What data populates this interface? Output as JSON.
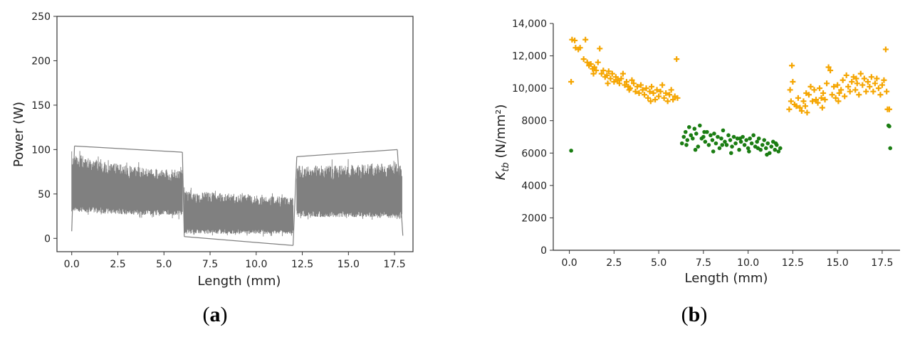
{
  "colors": {
    "power_signal": "#808080",
    "ktb_orange": "#f5a500",
    "ktb_green": "#1a7d12",
    "axis": "#333333"
  },
  "panels": {
    "a": {
      "open": "(",
      "letter": "a",
      "close": ")"
    },
    "b": {
      "open": "(",
      "letter": "b",
      "close": ")"
    }
  },
  "chart_data": [
    {
      "id": "a",
      "type": "line",
      "title": "",
      "xlabel": "Length (mm)",
      "ylabel": "Power (W)",
      "xlim": [
        -0.8,
        18.5
      ],
      "ylim": [
        -15,
        250
      ],
      "xticks": [
        0.0,
        2.5,
        5.0,
        7.5,
        10.0,
        12.5,
        15.0,
        17.5
      ],
      "xtick_labels": [
        "0.0",
        "2.5",
        "5.0",
        "7.5",
        "10.0",
        "12.5",
        "15.0",
        "17.5"
      ],
      "yticks": [
        0,
        50,
        100,
        150,
        200,
        250
      ],
      "ytick_labels": [
        "0",
        "50",
        "100",
        "150",
        "200",
        "250"
      ],
      "grid": false,
      "series": [
        {
          "style": "band",
          "segments": [
            {
              "x": [
                0.0,
                0.3,
                1.5,
                3.0,
                4.5,
                6.0
              ],
              "upper": [
                98,
                95,
                88,
                82,
                78,
                77
              ],
              "lower": [
                28,
                30,
                28,
                27,
                26,
                26
              ]
            },
            {
              "x": [
                6.1,
                7.5,
                9.0,
                10.5,
                12.0
              ],
              "upper": [
                54,
                52,
                50,
                48,
                46
              ],
              "lower": [
                5,
                5,
                5,
                5,
                5
              ]
            },
            {
              "x": [
                12.2,
                13.5,
                15.0,
                16.5,
                17.9
              ],
              "upper": [
                82,
                82,
                83,
                84,
                84
              ],
              "lower": [
                25,
                24,
                24,
                23,
                23
              ]
            }
          ],
          "spikes": [
            {
              "x": 0.0,
              "y": 8
            },
            {
              "x": 0.15,
              "y": 104
            },
            {
              "x": 6.0,
              "y": 97
            },
            {
              "x": 6.1,
              "y": 2
            },
            {
              "x": 12.0,
              "y": -8
            },
            {
              "x": 12.2,
              "y": 92
            },
            {
              "x": 17.65,
              "y": 100
            },
            {
              "x": 17.95,
              "y": 3
            }
          ]
        }
      ]
    },
    {
      "id": "b",
      "type": "scatter",
      "title": "",
      "xlabel": "Length (mm)",
      "ylabel_base": "K",
      "ylabel_sub": "tb",
      "ylabel_rest": " (N/mm²)",
      "xlim": [
        -0.9,
        18.5
      ],
      "ylim": [
        0,
        14000
      ],
      "xticks": [
        0.0,
        2.5,
        5.0,
        7.5,
        10.0,
        12.5,
        15.0,
        17.5
      ],
      "xtick_labels": [
        "0.0",
        "2.5",
        "5.0",
        "7.5",
        "10.0",
        "12.5",
        "15.0",
        "17.5"
      ],
      "yticks": [
        0,
        2000,
        4000,
        6000,
        8000,
        10000,
        12000,
        14000
      ],
      "ytick_labels": [
        "0",
        "2000",
        "4000",
        "6000",
        "8000",
        "10,000",
        "12,000",
        "14,000"
      ],
      "grid": false,
      "series": [
        {
          "marker": "plus",
          "color": "#f5a500",
          "points": [
            [
              0.1,
              10400
            ],
            [
              0.15,
              13000
            ],
            [
              0.3,
              12950
            ],
            [
              0.35,
              12500
            ],
            [
              0.5,
              12400
            ],
            [
              0.6,
              12500
            ],
            [
              0.8,
              11800
            ],
            [
              0.9,
              13000
            ],
            [
              1.0,
              11600
            ],
            [
              1.1,
              11400
            ],
            [
              1.2,
              11500
            ],
            [
              1.3,
              11200
            ],
            [
              1.4,
              11300
            ],
            [
              1.5,
              11100
            ],
            [
              1.6,
              11600
            ],
            [
              1.7,
              12450
            ],
            [
              1.8,
              10900
            ],
            [
              1.9,
              11100
            ],
            [
              2.0,
              10700
            ],
            [
              2.1,
              10800
            ],
            [
              2.2,
              11050
            ],
            [
              2.3,
              10600
            ],
            [
              2.4,
              10900
            ],
            [
              2.5,
              10400
            ],
            [
              2.6,
              10700
            ],
            [
              2.7,
              10500
            ],
            [
              2.8,
              10300
            ],
            [
              2.9,
              10600
            ],
            [
              3.0,
              10900
            ],
            [
              3.1,
              10200
            ],
            [
              3.2,
              10400
            ],
            [
              3.3,
              10100
            ],
            [
              3.4,
              10000
            ],
            [
              3.5,
              10500
            ],
            [
              3.6,
              10300
            ],
            [
              3.7,
              9800
            ],
            [
              3.8,
              10100
            ],
            [
              3.9,
              9700
            ],
            [
              4.0,
              10200
            ],
            [
              4.1,
              9900
            ],
            [
              4.2,
              9600
            ],
            [
              4.3,
              10000
            ],
            [
              4.4,
              9400
            ],
            [
              4.5,
              9800
            ],
            [
              4.6,
              10100
            ],
            [
              4.7,
              9700
            ],
            [
              4.8,
              9300
            ],
            [
              4.9,
              9900
            ],
            [
              5.0,
              9500
            ],
            [
              5.1,
              9800
            ],
            [
              5.2,
              10200
            ],
            [
              5.3,
              9400
            ],
            [
              5.4,
              9700
            ],
            [
              5.5,
              9200
            ],
            [
              5.6,
              9600
            ],
            [
              5.7,
              9900
            ],
            [
              5.8,
              9300
            ],
            [
              5.9,
              9500
            ],
            [
              6.0,
              11800
            ],
            [
              6.05,
              9400
            ],
            [
              1.35,
              10900
            ],
            [
              2.15,
              10300
            ],
            [
              3.35,
              9900
            ],
            [
              4.55,
              9200
            ],
            [
              12.3,
              8700
            ],
            [
              12.4,
              9200
            ],
            [
              12.45,
              11400
            ],
            [
              12.5,
              10400
            ],
            [
              12.6,
              9000
            ],
            [
              12.7,
              8900
            ],
            [
              12.8,
              9400
            ],
            [
              12.9,
              8800
            ],
            [
              13.0,
              8600
            ],
            [
              13.1,
              9200
            ],
            [
              13.2,
              8900
            ],
            [
              13.3,
              8500
            ],
            [
              13.4,
              9600
            ],
            [
              13.5,
              10100
            ],
            [
              13.6,
              9200
            ],
            [
              13.7,
              9900
            ],
            [
              13.8,
              9300
            ],
            [
              13.9,
              9100
            ],
            [
              14.0,
              10000
            ],
            [
              14.1,
              9400
            ],
            [
              14.2,
              9700
            ],
            [
              14.3,
              9300
            ],
            [
              14.4,
              10300
            ],
            [
              14.5,
              11300
            ],
            [
              14.6,
              11100
            ],
            [
              14.7,
              9600
            ],
            [
              14.8,
              10100
            ],
            [
              14.9,
              9400
            ],
            [
              15.0,
              10200
            ],
            [
              15.1,
              9700
            ],
            [
              15.2,
              9900
            ],
            [
              15.3,
              10500
            ],
            [
              15.4,
              9500
            ],
            [
              15.5,
              10800
            ],
            [
              15.6,
              10100
            ],
            [
              15.7,
              9800
            ],
            [
              15.8,
              10400
            ],
            [
              15.9,
              10700
            ],
            [
              16.0,
              9900
            ],
            [
              16.1,
              10300
            ],
            [
              16.2,
              9600
            ],
            [
              16.3,
              10900
            ],
            [
              16.4,
              10200
            ],
            [
              16.5,
              10600
            ],
            [
              16.6,
              9800
            ],
            [
              16.7,
              10400
            ],
            [
              16.8,
              10100
            ],
            [
              16.9,
              10700
            ],
            [
              17.0,
              9800
            ],
            [
              17.1,
              10300
            ],
            [
              17.2,
              10600
            ],
            [
              17.3,
              10000
            ],
            [
              17.4,
              9600
            ],
            [
              17.5,
              10200
            ],
            [
              17.6,
              10500
            ],
            [
              17.7,
              12400
            ],
            [
              17.75,
              9800
            ],
            [
              17.8,
              8700
            ],
            [
              17.9,
              8700
            ],
            [
              12.35,
              9900
            ],
            [
              13.25,
              9700
            ],
            [
              14.15,
              8800
            ],
            [
              15.05,
              9200
            ],
            [
              16.05,
              10600
            ]
          ]
        },
        {
          "marker": "dot",
          "color": "#1a7d12",
          "points": [
            [
              0.1,
              6150
            ],
            [
              6.3,
              6600
            ],
            [
              6.4,
              7000
            ],
            [
              6.5,
              7300
            ],
            [
              6.6,
              6800
            ],
            [
              6.7,
              7600
            ],
            [
              6.8,
              7100
            ],
            [
              6.9,
              6900
            ],
            [
              7.0,
              7500
            ],
            [
              7.1,
              7200
            ],
            [
              7.2,
              6400
            ],
            [
              7.3,
              7700
            ],
            [
              7.4,
              6900
            ],
            [
              7.5,
              7000
            ],
            [
              7.6,
              6700
            ],
            [
              7.7,
              7300
            ],
            [
              7.8,
              6500
            ],
            [
              7.9,
              7100
            ],
            [
              8.0,
              6800
            ],
            [
              8.1,
              7200
            ],
            [
              8.2,
              6600
            ],
            [
              8.3,
              7000
            ],
            [
              8.4,
              6300
            ],
            [
              8.5,
              6900
            ],
            [
              8.6,
              7400
            ],
            [
              8.7,
              6700
            ],
            [
              8.8,
              6500
            ],
            [
              8.9,
              7100
            ],
            [
              9.0,
              6800
            ],
            [
              9.1,
              6400
            ],
            [
              9.2,
              7000
            ],
            [
              9.3,
              6600
            ],
            [
              9.4,
              6900
            ],
            [
              9.5,
              6200
            ],
            [
              9.6,
              6700
            ],
            [
              9.7,
              7000
            ],
            [
              9.8,
              6500
            ],
            [
              9.9,
              6800
            ],
            [
              10.0,
              6300
            ],
            [
              10.1,
              6900
            ],
            [
              10.2,
              6600
            ],
            [
              10.3,
              7100
            ],
            [
              10.4,
              6400
            ],
            [
              10.5,
              6700
            ],
            [
              10.6,
              6900
            ],
            [
              10.7,
              6200
            ],
            [
              10.8,
              6500
            ],
            [
              10.9,
              6800
            ],
            [
              11.0,
              6300
            ],
            [
              11.1,
              6600
            ],
            [
              11.2,
              6000
            ],
            [
              11.3,
              6400
            ],
            [
              11.4,
              6700
            ],
            [
              11.5,
              6200
            ],
            [
              11.6,
              6500
            ],
            [
              11.7,
              6100
            ],
            [
              11.8,
              6300
            ],
            [
              6.55,
              6500
            ],
            [
              7.05,
              6200
            ],
            [
              7.55,
              7300
            ],
            [
              8.05,
              6100
            ],
            [
              8.55,
              6500
            ],
            [
              9.05,
              6000
            ],
            [
              9.55,
              6900
            ],
            [
              10.05,
              6100
            ],
            [
              10.55,
              6300
            ],
            [
              11.05,
              5900
            ],
            [
              11.55,
              6600
            ],
            [
              17.85,
              7700
            ],
            [
              17.9,
              7650
            ],
            [
              17.95,
              6300
            ]
          ]
        }
      ]
    }
  ]
}
